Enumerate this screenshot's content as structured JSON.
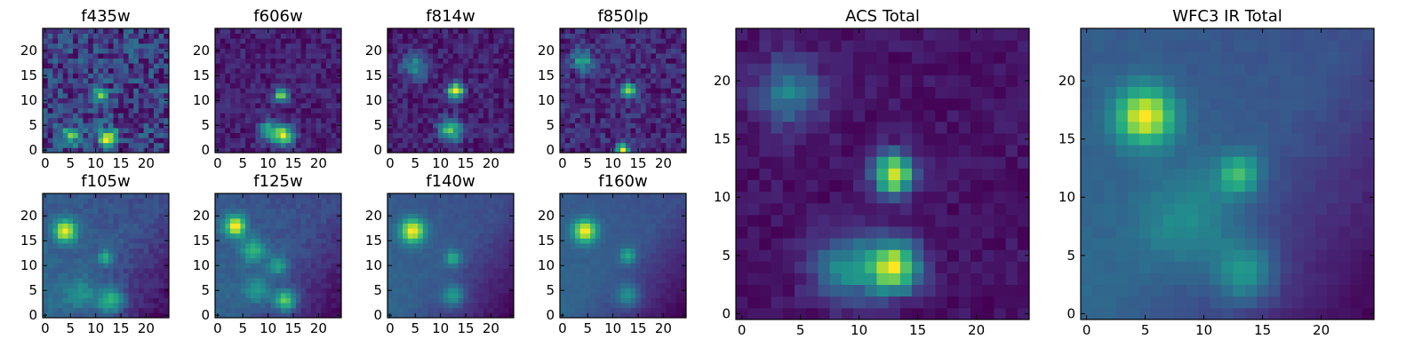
{
  "chart_data": [
    {
      "type": "heatmap",
      "title": "f435w",
      "colormap": "viridis",
      "grid_size": 25,
      "x_ticks": [
        0,
        5,
        10,
        15,
        20
      ],
      "y_ticks": [
        0,
        5,
        10,
        15,
        20
      ],
      "noise": 0.28,
      "sources": [
        {
          "x": 12.5,
          "y": 2.5,
          "amplitude": 0.7,
          "sigma": 1.2
        },
        {
          "x": 11,
          "y": 11,
          "amplitude": 0.45,
          "sigma": 1.0
        },
        {
          "x": 5,
          "y": 3,
          "amplitude": 0.35,
          "sigma": 1.4
        }
      ]
    },
    {
      "type": "heatmap",
      "title": "f606w",
      "colormap": "viridis",
      "grid_size": 25,
      "x_ticks": [
        0,
        5,
        10,
        15,
        20
      ],
      "y_ticks": [
        0,
        5,
        10,
        15,
        20
      ],
      "noise": 0.16,
      "sources": [
        {
          "x": 12.5,
          "y": 11,
          "amplitude": 0.6,
          "sigma": 1.0
        },
        {
          "x": 13,
          "y": 3,
          "amplitude": 0.7,
          "sigma": 1.4
        },
        {
          "x": 10,
          "y": 4,
          "amplitude": 0.45,
          "sigma": 1.4
        }
      ]
    },
    {
      "type": "heatmap",
      "title": "f814w",
      "colormap": "viridis",
      "grid_size": 25,
      "x_ticks": [
        0,
        5,
        10,
        15,
        20
      ],
      "y_ticks": [
        0,
        5,
        10,
        15,
        20
      ],
      "noise": 0.16,
      "sources": [
        {
          "x": 13,
          "y": 12,
          "amplitude": 0.8,
          "sigma": 1.1
        },
        {
          "x": 12,
          "y": 4,
          "amplitude": 0.55,
          "sigma": 1.6
        },
        {
          "x": 5,
          "y": 17,
          "amplitude": 0.35,
          "sigma": 1.8
        }
      ]
    },
    {
      "type": "heatmap",
      "title": "f850lp",
      "colormap": "viridis",
      "grid_size": 25,
      "x_ticks": [
        0,
        5,
        10,
        15,
        20
      ],
      "y_ticks": [
        0,
        5,
        10,
        15,
        20
      ],
      "noise": 0.22,
      "sources": [
        {
          "x": 13,
          "y": 12,
          "amplitude": 0.7,
          "sigma": 1.0
        },
        {
          "x": 12,
          "y": 0,
          "amplitude": 0.75,
          "sigma": 0.9
        },
        {
          "x": 4,
          "y": 18,
          "amplitude": 0.45,
          "sigma": 1.4
        }
      ]
    },
    {
      "type": "heatmap",
      "title": "ACS Total",
      "colormap": "viridis",
      "grid_size": 25,
      "x_ticks": [
        0,
        5,
        10,
        15,
        20
      ],
      "y_ticks": [
        0,
        5,
        10,
        15,
        20
      ],
      "noise": 0.1,
      "sources": [
        {
          "x": 13,
          "y": 12,
          "amplitude": 0.85,
          "sigma": 1.2
        },
        {
          "x": 13,
          "y": 4,
          "amplitude": 0.8,
          "sigma": 1.5
        },
        {
          "x": 9,
          "y": 4,
          "amplitude": 0.4,
          "sigma": 2.0
        },
        {
          "x": 4,
          "y": 19,
          "amplitude": 0.35,
          "sigma": 2.0
        }
      ]
    },
    {
      "type": "heatmap",
      "title": "f105w",
      "colormap": "viridis",
      "grid_size": 25,
      "x_ticks": [
        0,
        5,
        10,
        15,
        20
      ],
      "y_ticks": [
        0,
        5,
        10,
        15,
        20
      ],
      "noise": 0.12,
      "gradient": 0.55,
      "sources": [
        {
          "x": 4,
          "y": 17,
          "amplitude": 0.9,
          "sigma": 1.5
        },
        {
          "x": 12,
          "y": 11.5,
          "amplitude": 0.5,
          "sigma": 1.0
        },
        {
          "x": 13,
          "y": 3,
          "amplitude": 0.6,
          "sigma": 1.8
        },
        {
          "x": 7,
          "y": 4,
          "amplitude": 0.3,
          "sigma": 2.0
        }
      ]
    },
    {
      "type": "heatmap",
      "title": "f125w",
      "colormap": "viridis",
      "grid_size": 25,
      "x_ticks": [
        0,
        5,
        10,
        15,
        20
      ],
      "y_ticks": [
        0,
        5,
        10,
        15,
        20
      ],
      "noise": 0.1,
      "gradient": 0.55,
      "sources": [
        {
          "x": 3.5,
          "y": 18,
          "amplitude": 0.9,
          "sigma": 1.5
        },
        {
          "x": 7,
          "y": 13,
          "amplitude": 0.5,
          "sigma": 1.6
        },
        {
          "x": 12,
          "y": 10,
          "amplitude": 0.45,
          "sigma": 1.3
        },
        {
          "x": 13.5,
          "y": 3,
          "amplitude": 0.75,
          "sigma": 1.5
        },
        {
          "x": 8,
          "y": 5,
          "amplitude": 0.35,
          "sigma": 1.8
        }
      ]
    },
    {
      "type": "heatmap",
      "title": "f140w",
      "colormap": "viridis",
      "grid_size": 25,
      "x_ticks": [
        0,
        5,
        10,
        15,
        20
      ],
      "y_ticks": [
        0,
        5,
        10,
        15,
        20
      ],
      "noise": 0.06,
      "gradient": 0.6,
      "sources": [
        {
          "x": 4.5,
          "y": 17,
          "amplitude": 0.95,
          "sigma": 1.7
        },
        {
          "x": 12.5,
          "y": 11.5,
          "amplitude": 0.5,
          "sigma": 1.1
        },
        {
          "x": 12.5,
          "y": 4,
          "amplitude": 0.45,
          "sigma": 1.6
        }
      ]
    },
    {
      "type": "heatmap",
      "title": "f160w",
      "colormap": "viridis",
      "grid_size": 25,
      "x_ticks": [
        0,
        5,
        10,
        15,
        20
      ],
      "y_ticks": [
        0,
        5,
        10,
        15,
        20
      ],
      "noise": 0.05,
      "gradient": 0.65,
      "sources": [
        {
          "x": 4.5,
          "y": 17,
          "amplitude": 0.95,
          "sigma": 1.6
        },
        {
          "x": 13,
          "y": 12,
          "amplitude": 0.45,
          "sigma": 1.1
        },
        {
          "x": 13,
          "y": 4,
          "amplitude": 0.4,
          "sigma": 1.6
        }
      ]
    },
    {
      "type": "heatmap",
      "title": "WFC3 IR Total",
      "colormap": "viridis",
      "grid_size": 25,
      "x_ticks": [
        0,
        5,
        10,
        15,
        20
      ],
      "y_ticks": [
        0,
        5,
        10,
        15,
        20
      ],
      "noise": 0.05,
      "gradient": 0.65,
      "sources": [
        {
          "x": 5,
          "y": 17,
          "amplitude": 0.95,
          "sigma": 1.7
        },
        {
          "x": 13,
          "y": 12,
          "amplitude": 0.55,
          "sigma": 1.2
        },
        {
          "x": 13.5,
          "y": 3.5,
          "amplitude": 0.45,
          "sigma": 1.8
        },
        {
          "x": 9,
          "y": 8,
          "amplitude": 0.25,
          "sigma": 3.0
        }
      ]
    }
  ]
}
